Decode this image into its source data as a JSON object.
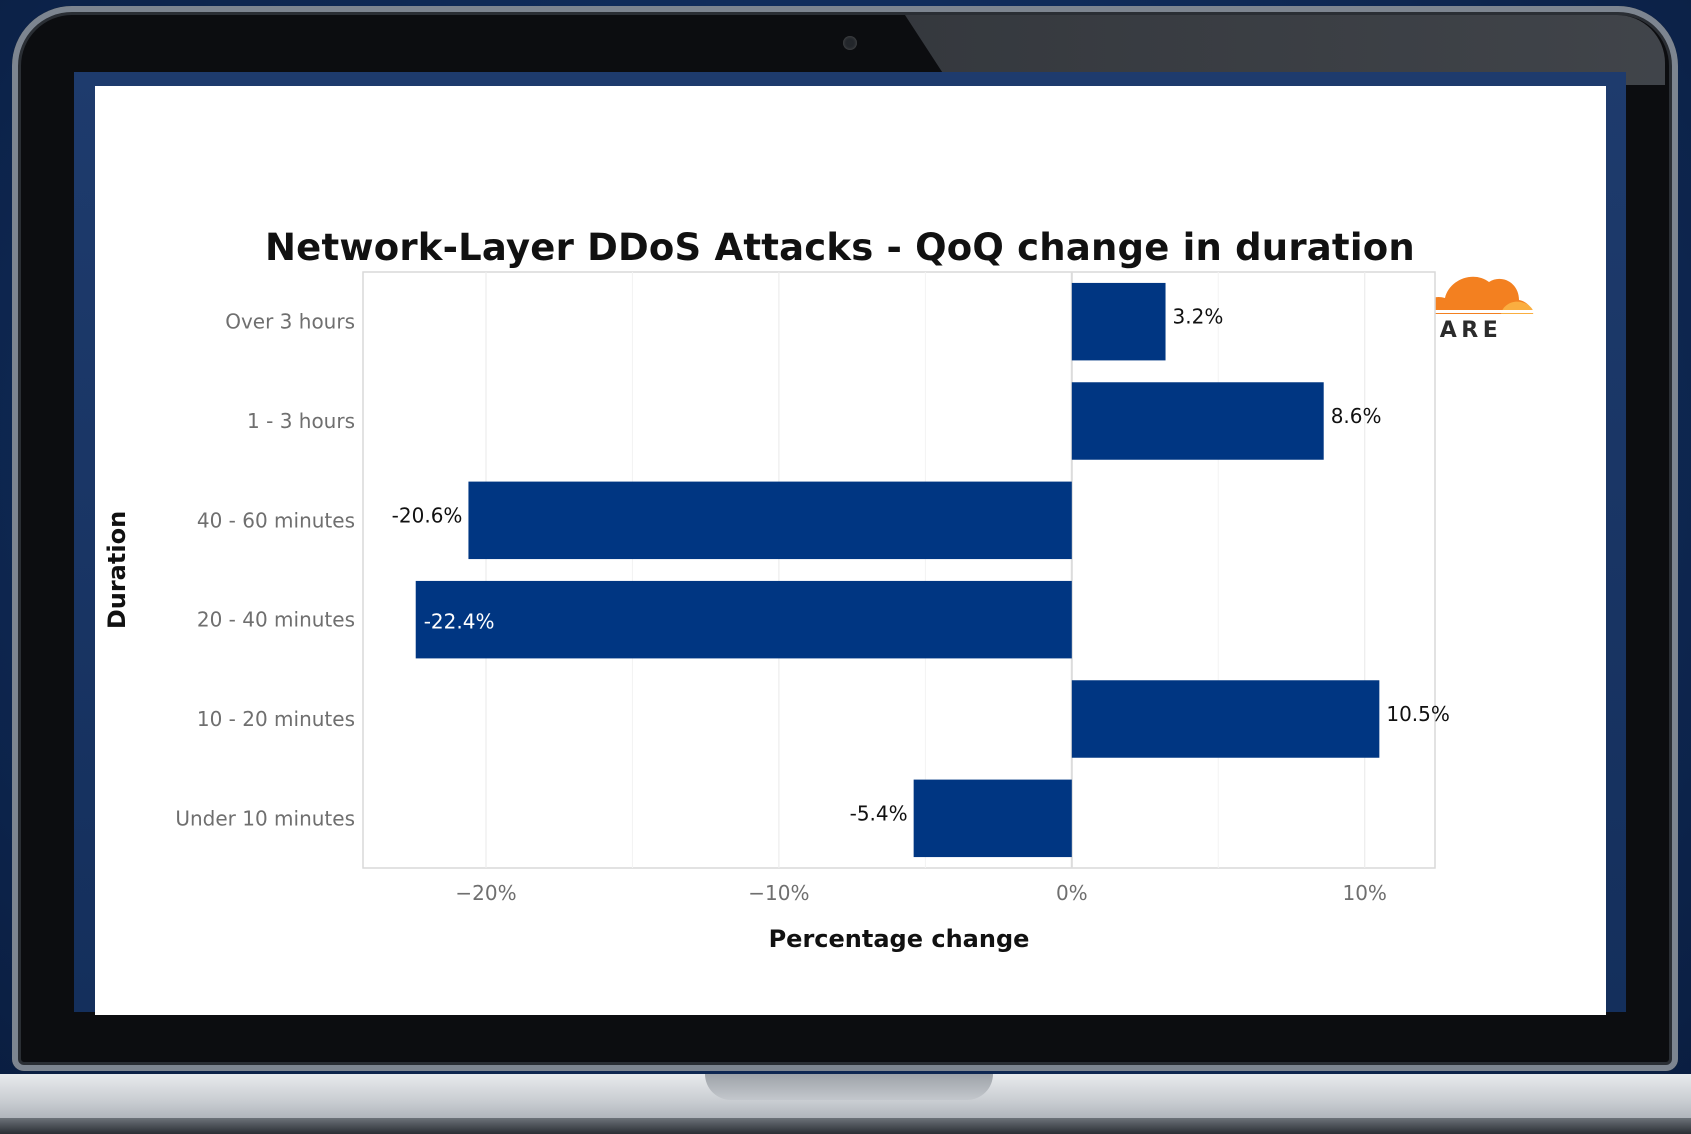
{
  "brand": {
    "name": "CLOUDFLARE",
    "colors": {
      "orange": "#f38020",
      "orange_light": "#faae40",
      "bar": "#003682"
    }
  },
  "chart_data": {
    "type": "bar",
    "orientation": "horizontal",
    "title": "Network-Layer DDoS Attacks - QoQ change in duration",
    "xlabel": "Percentage change",
    "ylabel": "Duration",
    "categories": [
      "Over 3 hours",
      "1 - 3 hours",
      "40 - 60 minutes",
      "20 - 40 minutes",
      "10 - 20 minutes",
      "Under 10 minutes"
    ],
    "values": [
      3.2,
      8.6,
      -20.6,
      -22.4,
      10.5,
      -5.4
    ],
    "value_labels": [
      "3.2%",
      "8.6%",
      "-20.6%",
      "-22.4%",
      "10.5%",
      "-5.4%"
    ],
    "xlim": [
      -24.2,
      12.4
    ],
    "xticks": [
      -20,
      -10,
      0,
      10
    ],
    "xtick_labels": [
      "−20%",
      "−10%",
      "0%",
      "10%"
    ],
    "grid": true,
    "legend": "none"
  }
}
